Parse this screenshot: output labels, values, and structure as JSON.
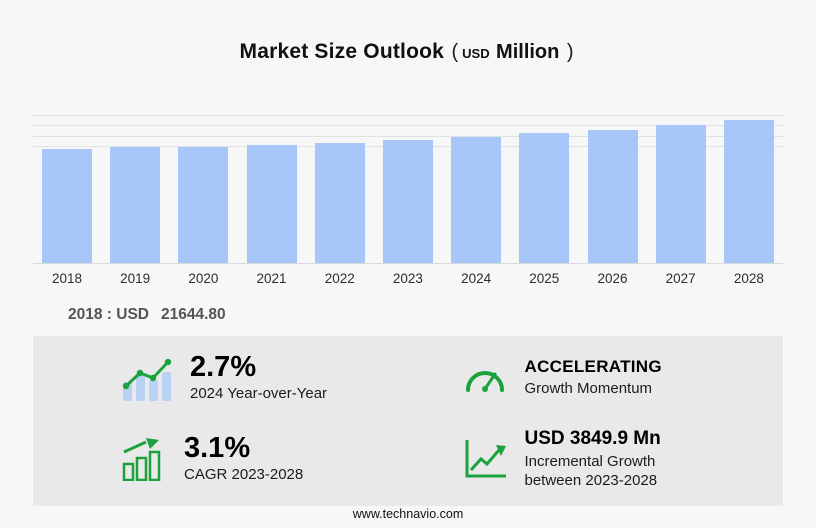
{
  "header": {
    "title": "Market Size Outlook",
    "paren_open": "(",
    "unit_small": "USD",
    "unit_big": "Million",
    "paren_close": ")"
  },
  "chart_data": {
    "type": "bar",
    "title": "Market Size Outlook (USD Million)",
    "categories": [
      "2018",
      "2019",
      "2020",
      "2021",
      "2022",
      "2023",
      "2024",
      "2025",
      "2026",
      "2027",
      "2028"
    ],
    "values": [
      21644.8,
      21990,
      22100,
      22450,
      22900,
      23330,
      23960,
      24640,
      25370,
      26250,
      27180
    ],
    "ylim": [
      0,
      28500
    ],
    "gridline_values": [
      22000,
      24000,
      26000,
      28000
    ],
    "bar_color": "#a7c7f8",
    "xlabel": "",
    "ylabel": "",
    "legend": "none",
    "grid": "horizontal-faint"
  },
  "base_note": {
    "label": "2018 : USD",
    "value": "21644.80"
  },
  "stats": [
    {
      "value": "2.7%",
      "label": "2024 Year-over-Year",
      "icon": "bar-trend-icon"
    },
    {
      "value": "ACCELERATING",
      "label": "Growth Momentum",
      "icon": "speedometer-icon"
    },
    {
      "value": "3.1%",
      "label": "CAGR 2023-2028",
      "icon": "outlined-bars-arrow-icon"
    },
    {
      "value": "USD 3849.9 Mn",
      "label": "Incremental Growth between 2023-2028",
      "icon": "axis-growth-arrow-icon"
    }
  ],
  "footer": {
    "url": "www.technavio.com"
  },
  "colors": {
    "accent_green": "#1ba23c",
    "bar_blue": "#a7c7f8",
    "icon_bar_blue": "#b9d1f5",
    "panel_gray": "#e9e9e9",
    "page_bg": "#f7f7f7"
  }
}
